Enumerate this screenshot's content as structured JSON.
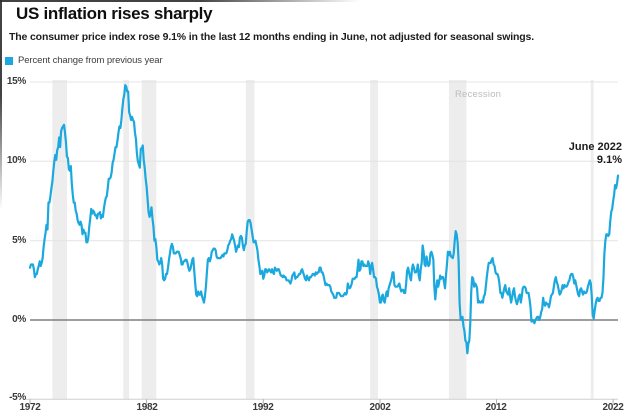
{
  "header": {
    "title": "US inflation rises sharply",
    "subtitle": "The consumer price index rose 9.1% in the last 12 months ending in June, not adjusted for seasonal swings."
  },
  "legend": {
    "swatch_icon": "legend-swatch",
    "swatch_color": "#1ba8de",
    "label": "Percent change from previous year"
  },
  "annotations": {
    "recession_label": "Recession",
    "callout_line1": "June 2022",
    "callout_line2": "9.1%"
  },
  "chart_data": {
    "type": "line",
    "title": "US inflation rises sharply",
    "series_name": "Percent change from previous year",
    "unit": "percent",
    "frequency": "monthly",
    "start_year": 1972,
    "end_label_text": "June 2022 9.1%",
    "line_color": "#1ba8de",
    "zero_line_color": "#7f7f7f",
    "grid_color": "#e4e4e4",
    "axis_color": "#cfcfcf",
    "band_color": "#ededed",
    "ylim": [
      -5,
      15
    ],
    "y_grid_values": [
      15,
      10,
      5
    ],
    "y_tick_labels": [
      "15%",
      "10%",
      "5%",
      "0%",
      "-5%"
    ],
    "y_tick_values": [
      15,
      10,
      5,
      0,
      -5
    ],
    "x_tick_years": [
      1972,
      1982,
      1992,
      2002,
      2012,
      2022
    ],
    "x_tick_labels": [
      "1972",
      "1982",
      "1992",
      "2002",
      "2012",
      "2022"
    ],
    "legend_position": "top-left",
    "grid": true,
    "recession_bands": [
      [
        1973.92,
        1975.17
      ],
      [
        1980.0,
        1980.5
      ],
      [
        1981.58,
        1982.83
      ],
      [
        1990.5,
        1991.25
      ],
      [
        2001.17,
        2001.83
      ],
      [
        2007.92,
        2009.42
      ],
      [
        2020.08,
        2020.33
      ]
    ],
    "values": [
      3.3,
      3.5,
      3.5,
      3.5,
      3.2,
      2.7,
      2.9,
      2.9,
      3.2,
      3.4,
      3.7,
      3.4,
      3.6,
      3.9,
      4.6,
      5.1,
      5.5,
      6.0,
      5.7,
      7.4,
      7.4,
      7.8,
      8.3,
      8.7,
      9.4,
      10.0,
      10.4,
      10.1,
      10.7,
      10.9,
      11.5,
      10.9,
      11.9,
      12.1,
      12.2,
      12.3,
      11.8,
      11.2,
      10.3,
      10.2,
      9.5,
      9.4,
      9.7,
      8.6,
      7.9,
      7.4,
      7.4,
      6.9,
      6.7,
      6.3,
      6.1,
      6.0,
      6.2,
      6.0,
      5.4,
      5.7,
      5.5,
      5.5,
      4.9,
      4.9,
      5.2,
      5.9,
      6.4,
      7.0,
      6.7,
      6.9,
      6.8,
      6.6,
      6.6,
      6.4,
      6.7,
      6.7,
      6.8,
      6.4,
      6.6,
      6.5,
      7.0,
      7.4,
      7.7,
      7.8,
      8.3,
      8.9,
      8.9,
      9.0,
      9.3,
      9.9,
      10.1,
      10.5,
      10.9,
      10.9,
      11.3,
      11.8,
      12.2,
      12.1,
      12.6,
      13.3,
      13.9,
      14.2,
      14.8,
      14.7,
      14.4,
      14.4,
      13.1,
      12.9,
      12.6,
      12.8,
      12.6,
      12.5,
      11.8,
      11.4,
      10.5,
      10.0,
      9.8,
      9.6,
      10.8,
      10.8,
      11.0,
      10.1,
      9.6,
      8.9,
      8.4,
      7.6,
      6.8,
      6.5,
      6.7,
      7.1,
      6.4,
      5.9,
      5.0,
      5.1,
      4.6,
      3.8,
      3.7,
      3.5,
      3.6,
      3.9,
      3.5,
      2.6,
      2.5,
      2.6,
      2.9,
      2.9,
      3.3,
      3.8,
      4.2,
      4.6,
      4.8,
      4.6,
      4.2,
      4.2,
      4.2,
      4.3,
      4.3,
      4.3,
      4.1,
      3.9,
      3.5,
      3.5,
      3.7,
      3.7,
      3.8,
      3.8,
      3.6,
      3.3,
      3.1,
      3.2,
      3.5,
      3.8,
      3.9,
      3.1,
      2.3,
      1.6,
      1.5,
      1.8,
      1.6,
      1.6,
      1.8,
      1.5,
      1.3,
      1.1,
      1.5,
      2.1,
      3.0,
      3.8,
      3.9,
      3.7,
      3.9,
      4.3,
      4.4,
      4.5,
      4.5,
      4.4,
      4.0,
      3.9,
      3.9,
      3.9,
      3.9,
      4.0,
      4.1,
      4.0,
      4.2,
      4.2,
      4.2,
      4.4,
      4.7,
      4.8,
      5.0,
      5.1,
      5.4,
      5.2,
      5.0,
      4.7,
      4.3,
      4.5,
      4.7,
      4.6,
      5.2,
      5.3,
      5.2,
      4.7,
      4.4,
      4.7,
      4.8,
      5.6,
      6.2,
      6.3,
      6.3,
      6.1,
      5.7,
      5.3,
      4.9,
      4.9,
      5.0,
      4.7,
      4.4,
      3.8,
      3.4,
      2.9,
      3.0,
      3.1,
      2.6,
      2.8,
      3.2,
      3.2,
      3.0,
      3.1,
      3.2,
      3.1,
      3.0,
      3.2,
      3.0,
      2.9,
      3.3,
      3.2,
      3.1,
      3.2,
      3.2,
      3.0,
      2.8,
      2.8,
      2.7,
      2.8,
      2.7,
      2.7,
      2.5,
      2.5,
      2.5,
      2.4,
      2.3,
      2.5,
      2.8,
      2.9,
      3.0,
      2.6,
      2.7,
      2.7,
      2.8,
      2.9,
      2.9,
      3.1,
      3.2,
      3.0,
      2.8,
      2.6,
      2.5,
      2.8,
      2.6,
      2.5,
      2.7,
      2.7,
      2.8,
      2.9,
      2.9,
      2.8,
      3.0,
      2.9,
      3.0,
      3.0,
      3.3,
      3.3,
      3.0,
      3.0,
      2.8,
      2.5,
      2.2,
      2.3,
      2.2,
      2.2,
      2.2,
      2.1,
      1.8,
      1.7,
      1.6,
      1.4,
      1.4,
      1.4,
      1.7,
      1.7,
      1.7,
      1.6,
      1.5,
      1.5,
      1.5,
      1.6,
      1.7,
      1.6,
      1.7,
      2.3,
      2.1,
      2.0,
      2.1,
      2.3,
      2.6,
      2.6,
      2.6,
      2.7,
      2.7,
      3.2,
      3.8,
      3.1,
      3.2,
      3.7,
      3.7,
      3.4,
      3.5,
      3.4,
      3.4,
      3.4,
      3.7,
      3.5,
      2.9,
      3.3,
      3.6,
      3.2,
      2.7,
      2.7,
      2.6,
      2.1,
      1.9,
      1.6,
      1.1,
      1.1,
      1.5,
      1.6,
      1.2,
      1.1,
      1.5,
      1.8,
      1.5,
      2.0,
      2.2,
      2.4,
      2.6,
      3.0,
      3.0,
      2.2,
      2.1,
      2.1,
      2.1,
      2.2,
      2.3,
      2.0,
      1.8,
      1.9,
      1.9,
      1.7,
      1.7,
      2.3,
      3.1,
      3.3,
      3.0,
      2.7,
      2.5,
      3.2,
      3.5,
      3.3,
      3.0,
      3.0,
      3.1,
      3.5,
      2.8,
      2.5,
      3.2,
      3.6,
      4.7,
      4.3,
      3.5,
      3.4,
      4.0,
      3.6,
      3.4,
      3.5,
      4.2,
      4.3,
      4.1,
      3.8,
      2.1,
      1.3,
      2.0,
      2.5,
      2.1,
      2.4,
      2.8,
      2.6,
      2.7,
      2.7,
      2.4,
      2.0,
      2.8,
      3.5,
      4.3,
      4.1,
      4.3,
      4.0,
      4.0,
      3.9,
      4.2,
      5.0,
      5.6,
      5.4,
      4.9,
      3.7,
      1.1,
      0.1,
      0.0,
      0.2,
      -0.4,
      -0.7,
      -1.3,
      -1.4,
      -2.1,
      -1.5,
      -1.3,
      -0.2,
      1.8,
      2.7,
      2.6,
      2.1,
      2.3,
      2.2,
      2.0,
      1.1,
      1.2,
      1.1,
      1.1,
      1.2,
      1.1,
      1.5,
      1.6,
      2.1,
      2.7,
      3.2,
      3.6,
      3.6,
      3.6,
      3.8,
      3.9,
      3.5,
      3.4,
      3.0,
      2.9,
      2.9,
      2.7,
      2.3,
      1.7,
      1.7,
      1.4,
      1.7,
      2.0,
      2.2,
      1.8,
      1.7,
      1.6,
      2.0,
      1.5,
      1.1,
      1.4,
      1.8,
      2.0,
      1.5,
      1.2,
      1.0,
      1.2,
      1.5,
      1.6,
      1.1,
      1.5,
      2.0,
      2.1,
      2.1,
      2.0,
      1.7,
      1.7,
      1.7,
      1.3,
      0.8,
      -0.1,
      0.0,
      -0.1,
      -0.2,
      0.0,
      0.1,
      0.2,
      0.2,
      0.0,
      0.2,
      0.5,
      0.7,
      1.4,
      1.0,
      0.9,
      1.1,
      1.0,
      1.0,
      0.8,
      1.1,
      1.5,
      1.6,
      1.7,
      2.1,
      2.5,
      2.7,
      2.4,
      2.2,
      1.9,
      1.6,
      1.7,
      1.9,
      2.2,
      2.0,
      2.2,
      2.1,
      2.1,
      2.2,
      2.4,
      2.5,
      2.8,
      2.9,
      2.9,
      2.7,
      2.3,
      2.5,
      2.2,
      1.9,
      1.6,
      1.5,
      1.9,
      2.0,
      1.8,
      1.6,
      1.8,
      1.7,
      1.7,
      1.8,
      2.1,
      2.3,
      2.5,
      2.3,
      1.5,
      0.3,
      0.1,
      0.6,
      1.0,
      1.3,
      1.4,
      1.2,
      1.2,
      1.4,
      1.4,
      1.7,
      2.6,
      4.2,
      5.0,
      5.4,
      5.4,
      5.3,
      5.4,
      6.2,
      6.8,
      7.0,
      7.5,
      7.9,
      8.5,
      8.3,
      8.6,
      9.1
    ]
  }
}
